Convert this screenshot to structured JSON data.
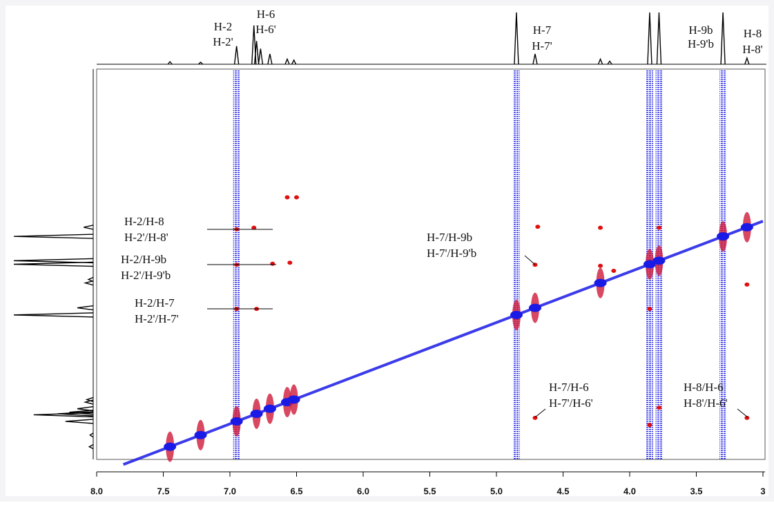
{
  "chart_data": {
    "type": "nmr2d",
    "xlim": [
      8,
      3
    ],
    "ylim": [
      0,
      7.7
    ],
    "xticks": [
      {
        "value": 8,
        "label": "8.0"
      },
      7.5,
      {
        "value": 7,
        "label": "7.0"
      },
      6.5,
      {
        "value": 6,
        "label": "6.0"
      },
      5.5,
      {
        "value": 5,
        "label": "5.0"
      },
      4.5,
      {
        "value": 4,
        "label": "4.0"
      },
      3.5,
      3
    ],
    "spectrum": {
      "x": [
        7.45,
        7.22,
        6.95,
        6.82,
        6.8,
        6.77,
        6.7,
        6.57,
        6.52,
        4.85,
        4.71,
        4.22,
        4.15,
        3.85,
        3.78,
        3.3,
        3.12
      ],
      "values": [
        0.05,
        0.04,
        0.35,
        0.75,
        0.45,
        0.3,
        0.2,
        0.1,
        0.08,
        1,
        0.2,
        0.1,
        0.06,
        1,
        1,
        1,
        0.12
      ],
      "color": "#000000"
    },
    "columns": {
      "x": [
        6.95,
        4.85,
        3.85,
        3.78,
        3.3
      ],
      "color": "#1a1ae6"
    },
    "diagonal": {
      "x": [
        7.45,
        7.22,
        6.95,
        6.8,
        6.7,
        6.57,
        6.52,
        4.85,
        4.71,
        4.22,
        3.85,
        3.78,
        3.3,
        3.12
      ],
      "color": "#1a1ae6"
    },
    "cross_peaks": {
      "x": [
        6.95,
        6.95,
        6.95,
        6.8,
        6.82,
        6.68,
        6.55,
        6.57,
        6.5,
        4.71,
        4.69,
        4.22,
        4.22,
        4.12,
        4.71,
        3.12,
        3.85,
        3.78,
        3.85,
        3.12,
        3.78
      ],
      "y": [
        3.16,
        3.86,
        4.73,
        4.73,
        3.13,
        3.84,
        3.82,
        2.53,
        2.53,
        3.86,
        3.11,
        3.13,
        3.88,
        3.98,
        6.88,
        6.88,
        7.02,
        6.68,
        4.73,
        4.25,
        3.13
      ],
      "color": "#e01010"
    },
    "top_labels": [
      [
        "H-2",
        "H-2'"
      ],
      [
        "H-6",
        "H-6'"
      ],
      [
        "H-7",
        "H-7'"
      ],
      [
        "H-9b",
        "H-9'b"
      ],
      [
        "H-8",
        "H-8'"
      ]
    ],
    "annotations": [
      [
        "H-2/H-8",
        "H-2'/H-8'"
      ],
      [
        "H-2/H-9b",
        "H-2'/H-9'b"
      ],
      [
        "H-2/H-7",
        "H-2'/H-7'"
      ],
      [
        "H-7/H-9b",
        "H-7'/H-9'b"
      ],
      [
        "H-7/H-6",
        "H-7'/H-6'"
      ],
      [
        "H-8/H-6",
        "H-8'/H-6'"
      ]
    ]
  }
}
